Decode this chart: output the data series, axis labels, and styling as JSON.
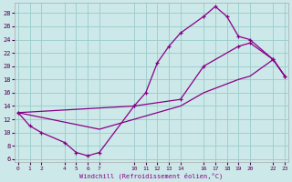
{
  "bg_color": "#cce8e8",
  "line_color": "#880088",
  "grid_color": "#99cccc",
  "xlim": [
    -0.3,
    23.3
  ],
  "ylim": [
    5.5,
    29.5
  ],
  "xticks": [
    0,
    1,
    2,
    4,
    5,
    6,
    7,
    10,
    11,
    12,
    13,
    14,
    16,
    17,
    18,
    19,
    20,
    22,
    23
  ],
  "yticks": [
    6,
    8,
    10,
    12,
    14,
    16,
    18,
    20,
    22,
    24,
    26,
    28
  ],
  "xlabel": "Windchill (Refroidissement éolien,°C)",
  "curve1_x": [
    0,
    1,
    2,
    4,
    5,
    6,
    7,
    10,
    11,
    12,
    13,
    14,
    16,
    17,
    18,
    19,
    20,
    22,
    23
  ],
  "curve1_y": [
    13,
    11,
    10,
    8.5,
    7,
    6.5,
    7,
    14,
    16,
    20.5,
    23,
    25,
    27.5,
    29,
    27.5,
    24.5,
    24,
    21,
    18.5
  ],
  "curve2_x": [
    0,
    10,
    14,
    16,
    19,
    20,
    22,
    23
  ],
  "curve2_y": [
    13,
    14,
    15,
    20,
    23,
    23.5,
    21,
    18.5
  ],
  "curve3_x": [
    0,
    7,
    10,
    14,
    16,
    19,
    20,
    22,
    23
  ],
  "curve3_y": [
    13,
    10.5,
    12,
    14,
    16,
    18,
    18.5,
    21,
    18.5
  ]
}
